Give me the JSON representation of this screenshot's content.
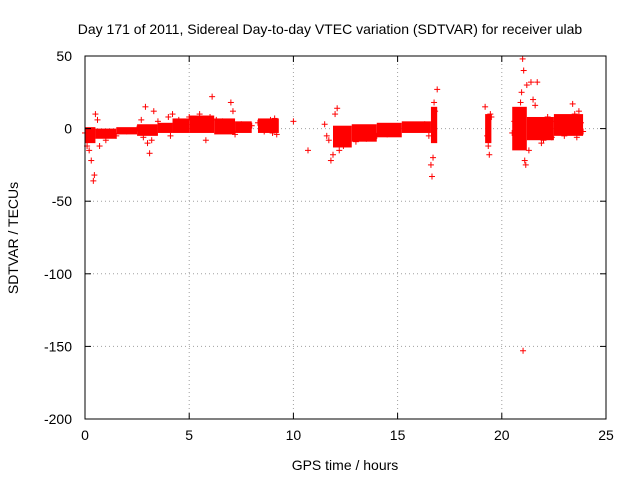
{
  "chart_data": {
    "type": "scatter",
    "title": "Day 171 of 2011, Sidereal Day-to-day VTEC variation (SDTVAR) for receiver ulab",
    "xlabel": "GPS time / hours",
    "ylabel": "SDTVAR / TECUs",
    "xlim": [
      0,
      25
    ],
    "ylim": [
      -200,
      50
    ],
    "xticks": [
      0,
      5,
      10,
      15,
      20,
      25
    ],
    "yticks": [
      -200,
      -150,
      -100,
      -50,
      0,
      50
    ],
    "xtick_labels": [
      "0",
      "5",
      "10",
      "15",
      "20",
      "25"
    ],
    "ytick_labels": [
      "-200",
      "-150",
      "-100",
      "-50",
      "0",
      "50"
    ],
    "grid": true,
    "marker": "+",
    "series": [
      {
        "name": "SDTVAR",
        "color": "#ff0000",
        "dense_bands": [
          {
            "x": [
              0.0,
              0.5
            ],
            "y": [
              -10,
              1
            ]
          },
          {
            "x": [
              0.5,
              1.5
            ],
            "y": [
              -7,
              0
            ]
          },
          {
            "x": [
              1.5,
              2.5
            ],
            "y": [
              -4,
              1
            ]
          },
          {
            "x": [
              2.5,
              3.5
            ],
            "y": [
              -5,
              3
            ]
          },
          {
            "x": [
              3.5,
              4.2
            ],
            "y": [
              -3,
              4
            ]
          },
          {
            "x": [
              4.2,
              5.0
            ],
            "y": [
              -3,
              7
            ]
          },
          {
            "x": [
              5.0,
              6.2
            ],
            "y": [
              -3,
              9
            ]
          },
          {
            "x": [
              6.2,
              7.2
            ],
            "y": [
              -4,
              7
            ]
          },
          {
            "x": [
              7.2,
              8.0
            ],
            "y": [
              -3,
              5
            ]
          },
          {
            "x": [
              8.3,
              9.3
            ],
            "y": [
              -3,
              7
            ]
          },
          {
            "x": [
              11.9,
              12.8
            ],
            "y": [
              -13,
              2
            ]
          },
          {
            "x": [
              12.8,
              14.0
            ],
            "y": [
              -9,
              3
            ]
          },
          {
            "x": [
              14.0,
              15.2
            ],
            "y": [
              -6,
              4
            ]
          },
          {
            "x": [
              15.2,
              16.6
            ],
            "y": [
              -3,
              5
            ]
          },
          {
            "x": [
              16.6,
              16.9
            ],
            "y": [
              -10,
              15
            ]
          },
          {
            "x": [
              19.2,
              19.5
            ],
            "y": [
              -10,
              10
            ]
          },
          {
            "x": [
              20.5,
              21.2
            ],
            "y": [
              -15,
              15
            ]
          },
          {
            "x": [
              21.2,
              22.5
            ],
            "y": [
              -8,
              8
            ]
          },
          {
            "x": [
              22.5,
              23.9
            ],
            "y": [
              -5,
              10
            ]
          }
        ],
        "points": [
          {
            "x": 0.0,
            "y": -3
          },
          {
            "x": 0.1,
            "y": -12
          },
          {
            "x": 0.2,
            "y": -15
          },
          {
            "x": 0.3,
            "y": -22
          },
          {
            "x": 0.4,
            "y": -36
          },
          {
            "x": 0.45,
            "y": -32
          },
          {
            "x": 0.5,
            "y": 10
          },
          {
            "x": 0.6,
            "y": 6
          },
          {
            "x": 0.7,
            "y": -12
          },
          {
            "x": 1.0,
            "y": -8
          },
          {
            "x": 1.5,
            "y": -5
          },
          {
            "x": 2.0,
            "y": -2
          },
          {
            "x": 2.5,
            "y": 0
          },
          {
            "x": 2.7,
            "y": 6
          },
          {
            "x": 2.8,
            "y": -6
          },
          {
            "x": 2.9,
            "y": 15
          },
          {
            "x": 3.0,
            "y": -10
          },
          {
            "x": 3.1,
            "y": -17
          },
          {
            "x": 3.2,
            "y": -8
          },
          {
            "x": 3.3,
            "y": 12
          },
          {
            "x": 3.5,
            "y": 5
          },
          {
            "x": 4.0,
            "y": 8
          },
          {
            "x": 4.1,
            "y": -5
          },
          {
            "x": 4.2,
            "y": 10
          },
          {
            "x": 4.5,
            "y": 6
          },
          {
            "x": 5.0,
            "y": 8
          },
          {
            "x": 5.5,
            "y": 10
          },
          {
            "x": 5.8,
            "y": -8
          },
          {
            "x": 6.0,
            "y": 8
          },
          {
            "x": 6.1,
            "y": 22
          },
          {
            "x": 6.3,
            "y": 6
          },
          {
            "x": 6.6,
            "y": 5
          },
          {
            "x": 7.0,
            "y": 18
          },
          {
            "x": 7.1,
            "y": 12
          },
          {
            "x": 7.2,
            "y": -4
          },
          {
            "x": 7.5,
            "y": 3
          },
          {
            "x": 8.0,
            "y": 2
          },
          {
            "x": 8.3,
            "y": 4
          },
          {
            "x": 8.6,
            "y": -2
          },
          {
            "x": 8.9,
            "y": 6
          },
          {
            "x": 9.0,
            "y": -3
          },
          {
            "x": 9.1,
            "y": 7
          },
          {
            "x": 9.2,
            "y": -4
          },
          {
            "x": 10.0,
            "y": 5
          },
          {
            "x": 10.7,
            "y": -15
          },
          {
            "x": 11.5,
            "y": 3
          },
          {
            "x": 11.6,
            "y": -5
          },
          {
            "x": 11.7,
            "y": -8
          },
          {
            "x": 11.8,
            "y": -22
          },
          {
            "x": 11.9,
            "y": -18
          },
          {
            "x": 12.0,
            "y": 10
          },
          {
            "x": 12.1,
            "y": 14
          },
          {
            "x": 12.2,
            "y": -15
          },
          {
            "x": 12.4,
            "y": -12
          },
          {
            "x": 12.6,
            "y": -10
          },
          {
            "x": 13.0,
            "y": -9
          },
          {
            "x": 13.5,
            "y": -7
          },
          {
            "x": 14.0,
            "y": -5
          },
          {
            "x": 14.5,
            "y": -4
          },
          {
            "x": 15.0,
            "y": -2
          },
          {
            "x": 15.5,
            "y": 0
          },
          {
            "x": 16.0,
            "y": 2
          },
          {
            "x": 16.3,
            "y": 3
          },
          {
            "x": 16.5,
            "y": -5
          },
          {
            "x": 16.6,
            "y": -25
          },
          {
            "x": 16.65,
            "y": -33
          },
          {
            "x": 16.7,
            "y": -20
          },
          {
            "x": 16.75,
            "y": 18
          },
          {
            "x": 16.8,
            "y": 12
          },
          {
            "x": 16.9,
            "y": 27
          },
          {
            "x": 19.2,
            "y": 15
          },
          {
            "x": 19.3,
            "y": -5
          },
          {
            "x": 19.35,
            "y": -12
          },
          {
            "x": 19.4,
            "y": -18
          },
          {
            "x": 19.45,
            "y": 10
          },
          {
            "x": 19.5,
            "y": 8
          },
          {
            "x": 20.5,
            "y": -3
          },
          {
            "x": 20.6,
            "y": 5
          },
          {
            "x": 20.7,
            "y": 10
          },
          {
            "x": 20.8,
            "y": -10
          },
          {
            "x": 20.9,
            "y": 18
          },
          {
            "x": 20.95,
            "y": 25
          },
          {
            "x": 21.0,
            "y": 48
          },
          {
            "x": 21.02,
            "y": -153
          },
          {
            "x": 21.05,
            "y": 40
          },
          {
            "x": 21.1,
            "y": -22
          },
          {
            "x": 21.15,
            "y": -25
          },
          {
            "x": 21.2,
            "y": 30
          },
          {
            "x": 21.3,
            "y": -15
          },
          {
            "x": 21.4,
            "y": 32
          },
          {
            "x": 21.5,
            "y": 20
          },
          {
            "x": 21.6,
            "y": 16
          },
          {
            "x": 21.7,
            "y": 32
          },
          {
            "x": 21.8,
            "y": 2
          },
          {
            "x": 21.9,
            "y": -10
          },
          {
            "x": 22.0,
            "y": -8
          },
          {
            "x": 22.2,
            "y": 8
          },
          {
            "x": 22.4,
            "y": -6
          },
          {
            "x": 22.6,
            "y": 5
          },
          {
            "x": 22.8,
            "y": 6
          },
          {
            "x": 23.0,
            "y": -5
          },
          {
            "x": 23.2,
            "y": 4
          },
          {
            "x": 23.4,
            "y": 17
          },
          {
            "x": 23.5,
            "y": 10
          },
          {
            "x": 23.6,
            "y": -6
          },
          {
            "x": 23.7,
            "y": 12
          },
          {
            "x": 23.8,
            "y": 4
          },
          {
            "x": 23.9,
            "y": -2
          }
        ]
      }
    ]
  }
}
